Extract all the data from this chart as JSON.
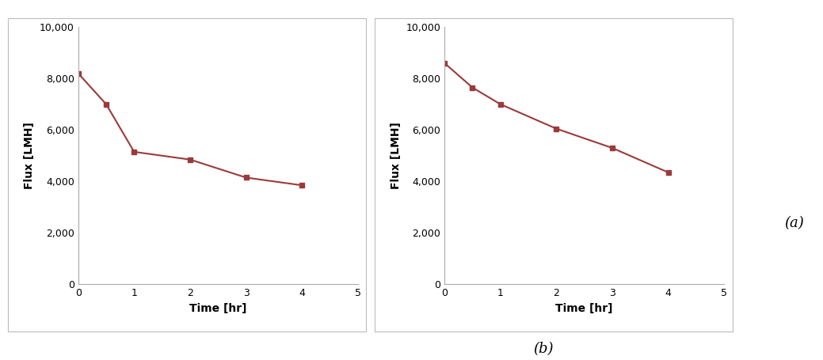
{
  "chart_left": {
    "x": [
      0,
      0.5,
      1,
      2,
      3,
      4
    ],
    "y": [
      8200,
      7000,
      5150,
      4850,
      4150,
      3850
    ],
    "xlabel": "Time [hr]",
    "ylabel": "Flux [LMH]",
    "xlim": [
      0,
      5
    ],
    "ylim": [
      0,
      10000
    ],
    "xticks": [
      0,
      1,
      2,
      3,
      4,
      5
    ],
    "yticks": [
      0,
      2000,
      4000,
      6000,
      8000,
      10000
    ]
  },
  "chart_right": {
    "x": [
      0,
      0.5,
      1,
      2,
      3,
      4
    ],
    "y": [
      8600,
      7650,
      7000,
      6050,
      5300,
      4350
    ],
    "xlabel": "Time [hr]",
    "ylabel": "Flux [LMH]",
    "xlim": [
      0,
      5
    ],
    "ylim": [
      0,
      10000
    ],
    "xticks": [
      0,
      1,
      2,
      3,
      4,
      5
    ],
    "yticks": [
      0,
      2000,
      4000,
      6000,
      8000,
      10000
    ]
  },
  "line_color": "#9B3A3A",
  "marker": "s",
  "markersize": 5,
  "linewidth": 1.5,
  "background_color": "#ffffff",
  "label_b": "(b)",
  "label_a": "(a)",
  "border_color": "#bbbbbb",
  "spine_color": "#aaaaaa"
}
